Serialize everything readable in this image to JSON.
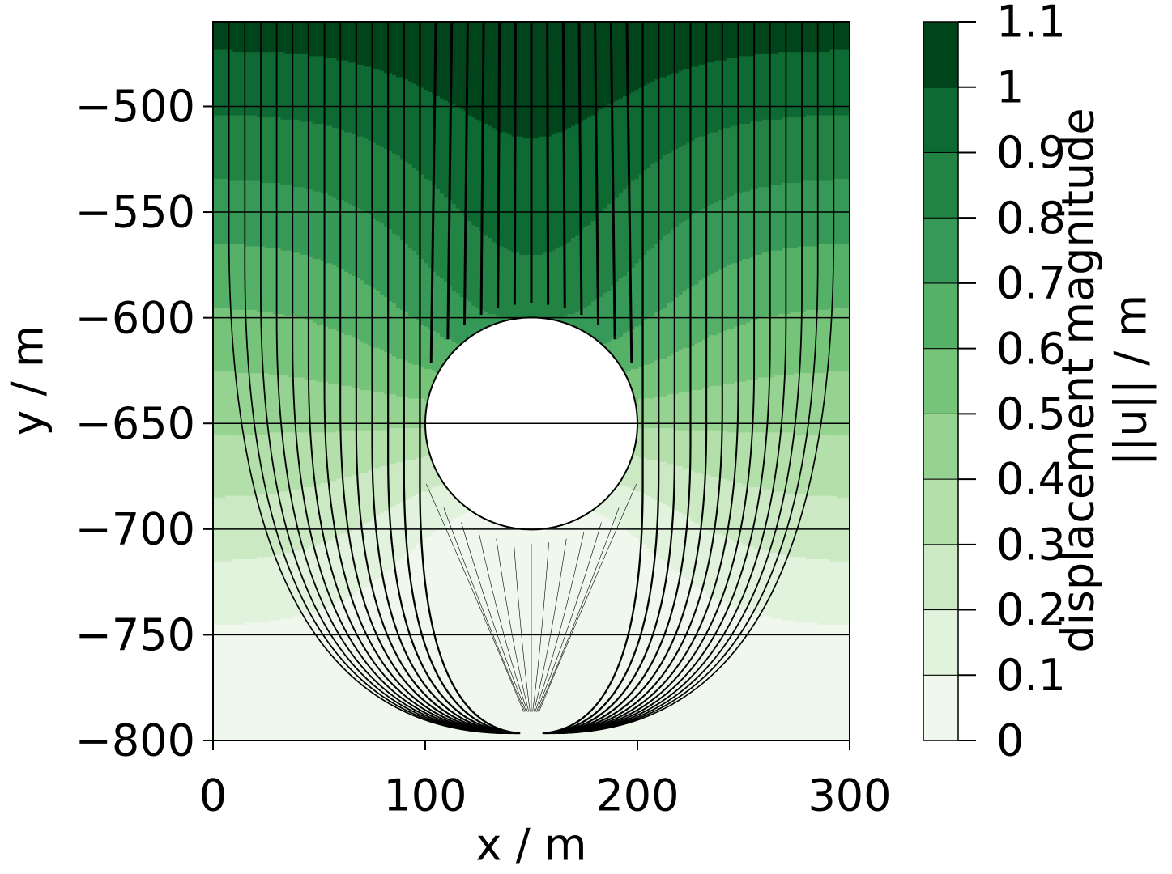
{
  "chart_data": {
    "type": "contour",
    "xlabel": "x / m",
    "ylabel": "y / m",
    "xlim": [
      0,
      300
    ],
    "ylim": [
      -800,
      -460
    ],
    "xticks": [
      0,
      100,
      200,
      300
    ],
    "yticks": [
      {
        "value": -500,
        "label": "−500"
      },
      {
        "value": -550,
        "label": "−550"
      },
      {
        "value": -600,
        "label": "−600"
      },
      {
        "value": -650,
        "label": "−650"
      },
      {
        "value": -700,
        "label": "−700"
      },
      {
        "value": -750,
        "label": "−750"
      },
      {
        "value": -800,
        "label": "−800"
      }
    ],
    "levels": [
      0,
      0.1,
      0.2,
      0.3,
      0.4,
      0.5,
      0.6,
      0.7,
      0.8,
      0.9,
      1,
      1.1
    ],
    "colors": [
      "#f0f7ed",
      "#e2f3dd",
      "#cbeac4",
      "#b2dfaa",
      "#96d292",
      "#76c479",
      "#55b068",
      "#379957",
      "#228344",
      "#0d6a32",
      "#00441b"
    ],
    "colorbar_label": [
      "displacement magnitude",
      "||u|| / m"
    ]
  }
}
